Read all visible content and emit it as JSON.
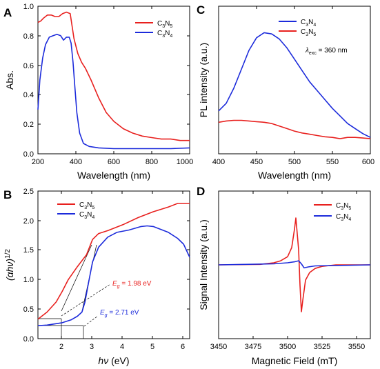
{
  "colors": {
    "c3n5": "#e8201e",
    "c3n4": "#1c2bdb"
  },
  "panels": [
    {
      "id": "A",
      "label": "A"
    },
    {
      "id": "B",
      "label": "B"
    },
    {
      "id": "C",
      "label": "C"
    },
    {
      "id": "D",
      "label": "D"
    }
  ],
  "chart_data": [
    {
      "panel": "A",
      "type": "line",
      "xlabel": "Wavelength (nm)",
      "ylabel": "Abs.",
      "xlim": [
        200,
        1000
      ],
      "ylim": [
        0,
        1.0
      ],
      "xticks": [
        "200",
        "400",
        "600",
        "800",
        "1000"
      ],
      "yticks": [
        "0.0",
        "0.2",
        "0.4",
        "0.6",
        "0.8",
        "1.0"
      ],
      "legend_position": "top-right",
      "series": [
        {
          "name": "C3N5",
          "color": "#e8201e",
          "x": [
            200,
            215,
            230,
            250,
            270,
            290,
            310,
            330,
            350,
            370,
            390,
            410,
            430,
            450,
            480,
            520,
            560,
            600,
            650,
            700,
            750,
            800,
            850,
            900,
            950,
            1000
          ],
          "y": [
            0.89,
            0.9,
            0.92,
            0.94,
            0.94,
            0.93,
            0.93,
            0.95,
            0.96,
            0.95,
            0.78,
            0.68,
            0.62,
            0.58,
            0.5,
            0.38,
            0.28,
            0.22,
            0.17,
            0.14,
            0.12,
            0.11,
            0.1,
            0.1,
            0.09,
            0.09
          ]
        },
        {
          "name": "C3N4",
          "color": "#1c2bdb",
          "x": [
            200,
            210,
            225,
            240,
            260,
            280,
            300,
            320,
            335,
            350,
            365,
            375,
            385,
            395,
            405,
            420,
            440,
            470,
            520,
            600,
            700,
            800,
            900,
            1000
          ],
          "y": [
            0.3,
            0.5,
            0.65,
            0.74,
            0.79,
            0.8,
            0.81,
            0.8,
            0.77,
            0.79,
            0.79,
            0.75,
            0.62,
            0.45,
            0.28,
            0.14,
            0.07,
            0.05,
            0.04,
            0.035,
            0.035,
            0.035,
            0.035,
            0.04
          ]
        }
      ]
    },
    {
      "panel": "B",
      "type": "line",
      "xlabel_italic": "hν",
      "xlabel_unit": " (eV)",
      "ylabel": "(αhν)",
      "ylabel_sup": "1/2",
      "xlim": [
        1.2,
        6.2
      ],
      "ylim": [
        0,
        2.5
      ],
      "xticks": [
        "2",
        "3",
        "4",
        "5",
        "6"
      ],
      "yticks": [
        "0.0",
        "0.5",
        "1.0",
        "1.5",
        "2.0",
        "2.5"
      ],
      "legend_position": "top-left",
      "series": [
        {
          "name": "C3N5",
          "color": "#e8201e",
          "x": [
            1.2,
            1.5,
            1.8,
            2.0,
            2.2,
            2.5,
            2.8,
            3.0,
            3.2,
            3.5,
            4.0,
            4.5,
            5.0,
            5.5,
            5.8,
            6.2
          ],
          "y": [
            0.33,
            0.45,
            0.62,
            0.8,
            1.0,
            1.22,
            1.42,
            1.68,
            1.78,
            1.83,
            1.93,
            2.05,
            2.15,
            2.23,
            2.29,
            2.29
          ]
        },
        {
          "name": "C3N4",
          "color": "#1c2bdb",
          "x": [
            1.2,
            1.5,
            2.0,
            2.3,
            2.5,
            2.65,
            2.75,
            2.85,
            3.0,
            3.2,
            3.5,
            3.8,
            4.2,
            4.6,
            4.8,
            5.0,
            5.5,
            5.8,
            6.0,
            6.2
          ],
          "y": [
            0.22,
            0.23,
            0.27,
            0.32,
            0.38,
            0.45,
            0.62,
            0.9,
            1.3,
            1.55,
            1.72,
            1.8,
            1.84,
            1.9,
            1.91,
            1.9,
            1.8,
            1.7,
            1.6,
            1.38
          ]
        }
      ],
      "annotations": [
        {
          "label": "E",
          "sub": "g",
          "text": " = 1.98 eV",
          "color": "#e8201e"
        },
        {
          "label": "E",
          "sub": "g",
          "text": " = 2.71 eV",
          "color": "#1c2bdb"
        }
      ]
    },
    {
      "panel": "C",
      "type": "line",
      "xlabel": "Wavelength (nm)",
      "ylabel": "PL intensity (a.u.)",
      "xlim": [
        400,
        600
      ],
      "xticks": [
        "400",
        "450",
        "500",
        "550",
        "600"
      ],
      "legend_position": "top-left",
      "annotation_lambda": "λ",
      "annotation_sub": "exc",
      "annotation_text": " = 360 nm",
      "series": [
        {
          "name": "C3N4",
          "color": "#1c2bdb",
          "x": [
            400,
            410,
            420,
            430,
            440,
            450,
            460,
            470,
            480,
            490,
            500,
            510,
            520,
            530,
            540,
            550,
            560,
            570,
            580,
            590,
            600
          ],
          "y": [
            0.22,
            0.28,
            0.4,
            0.55,
            0.7,
            0.8,
            0.84,
            0.83,
            0.79,
            0.72,
            0.63,
            0.54,
            0.45,
            0.38,
            0.31,
            0.24,
            0.18,
            0.12,
            0.08,
            0.04,
            0.01
          ]
        },
        {
          "name": "C3N5",
          "color": "#e8201e",
          "x": [
            400,
            410,
            420,
            430,
            440,
            450,
            460,
            470,
            480,
            490,
            500,
            510,
            520,
            530,
            540,
            550,
            560,
            570,
            580,
            590,
            600
          ],
          "y": [
            0.13,
            0.14,
            0.145,
            0.145,
            0.14,
            0.135,
            0.13,
            0.12,
            0.1,
            0.08,
            0.06,
            0.045,
            0.035,
            0.025,
            0.015,
            0.01,
            0.0,
            0.01,
            0.01,
            0.005,
            0.0
          ]
        }
      ]
    },
    {
      "panel": "D",
      "type": "line",
      "xlabel": "Magnetic Field (mT)",
      "ylabel": "Signal Intensity (a.u.)",
      "xlim": [
        3450,
        3560
      ],
      "xticks": [
        "3450",
        "3475",
        "3500",
        "3525",
        "3550"
      ],
      "legend_position": "top-right",
      "series": [
        {
          "name": "C3N5",
          "color": "#e8201e",
          "x": [
            3450,
            3480,
            3490,
            3495,
            3500,
            3503,
            3505,
            3506,
            3508,
            3509,
            3510,
            3511,
            3513,
            3516,
            3520,
            3525,
            3535,
            3560
          ],
          "y": [
            0.0,
            0.01,
            0.04,
            0.08,
            0.16,
            0.34,
            0.7,
            0.92,
            0.3,
            -0.4,
            -0.92,
            -0.7,
            -0.3,
            -0.15,
            -0.07,
            -0.03,
            0.0,
            0.0
          ]
        },
        {
          "name": "C3N4",
          "color": "#1c2bdb",
          "x": [
            3450,
            3490,
            3500,
            3505,
            3508,
            3510,
            3512,
            3515,
            3520,
            3560
          ],
          "y": [
            0.0,
            0.02,
            0.04,
            0.06,
            0.08,
            0.02,
            -0.06,
            -0.04,
            -0.02,
            0.0
          ]
        }
      ]
    }
  ]
}
